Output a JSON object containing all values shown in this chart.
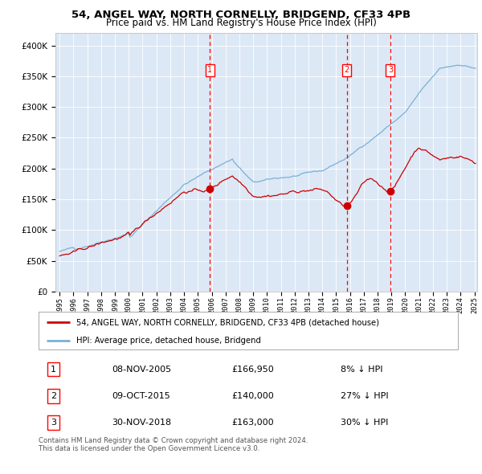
{
  "title": "54, ANGEL WAY, NORTH CORNELLY, BRIDGEND, CF33 4PB",
  "subtitle": "Price paid vs. HM Land Registry's House Price Index (HPI)",
  "title_fontsize": 9.5,
  "subtitle_fontsize": 8.5,
  "bg_color": "#dce8f5",
  "hpi_color": "#7ab0d8",
  "price_color": "#cc0000",
  "ylim": [
    0,
    420000
  ],
  "yticks": [
    0,
    50000,
    100000,
    150000,
    200000,
    250000,
    300000,
    350000,
    400000
  ],
  "sale_dates_num": [
    2005.86,
    2015.77,
    2018.92
  ],
  "sale_prices": [
    166950,
    140000,
    163000
  ],
  "sale_labels": [
    "1",
    "2",
    "3"
  ],
  "legend_line1": "54, ANGEL WAY, NORTH CORNELLY, BRIDGEND, CF33 4PB (detached house)",
  "legend_line2": "HPI: Average price, detached house, Bridgend",
  "table_data": [
    [
      "1",
      "08-NOV-2005",
      "£166,950",
      "8% ↓ HPI"
    ],
    [
      "2",
      "09-OCT-2015",
      "£140,000",
      "27% ↓ HPI"
    ],
    [
      "3",
      "30-NOV-2018",
      "£163,000",
      "30% ↓ HPI"
    ]
  ],
  "footnote": "Contains HM Land Registry data © Crown copyright and database right 2024.\nThis data is licensed under the Open Government Licence v3.0.",
  "start_year": 1995,
  "end_year": 2025
}
